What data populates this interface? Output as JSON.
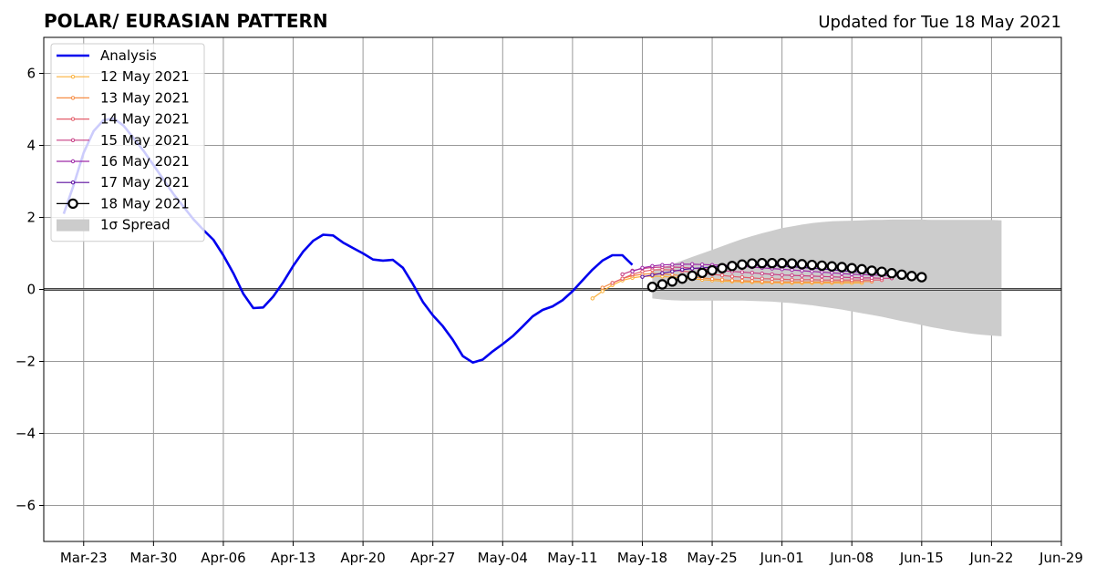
{
  "chart_data": {
    "type": "line",
    "title": "POLAR/ EURASIAN  PATTERN",
    "subtitle": "Updated for Tue 18 May 2021",
    "ylim": [
      -7,
      7
    ],
    "yticks": [
      -6,
      -4,
      -2,
      0,
      2,
      4,
      6
    ],
    "ytick_labels": [
      "−6",
      "−4",
      "−2",
      "0",
      "2",
      "4",
      "6"
    ],
    "xlim": [
      "2021-03-19",
      "2021-06-29"
    ],
    "xticks": [
      "2021-03-23",
      "2021-03-30",
      "2021-04-06",
      "2021-04-13",
      "2021-04-20",
      "2021-04-27",
      "2021-05-04",
      "2021-05-11",
      "2021-05-18",
      "2021-05-25",
      "2021-06-01",
      "2021-06-08",
      "2021-06-15",
      "2021-06-22",
      "2021-06-29"
    ],
    "xtick_labels": [
      "Mar-23",
      "Mar-30",
      "Apr-06",
      "Apr-13",
      "Apr-20",
      "Apr-27",
      "May-04",
      "May-11",
      "May-18",
      "May-25",
      "Jun-01",
      "Jun-08",
      "Jun-15",
      "Jun-22",
      "Jun-29"
    ],
    "grid": true,
    "legend_position": "upper-left",
    "analysis": {
      "name": "Analysis",
      "color": "#0000ee",
      "x": [
        "2021-03-21",
        "2021-03-22",
        "2021-03-23",
        "2021-03-24",
        "2021-03-25",
        "2021-03-26",
        "2021-03-27",
        "2021-03-28",
        "2021-03-29",
        "2021-03-30",
        "2021-03-31",
        "2021-04-01",
        "2021-04-02",
        "2021-04-03",
        "2021-04-04",
        "2021-04-05",
        "2021-04-06",
        "2021-04-07",
        "2021-04-08",
        "2021-04-09",
        "2021-04-10",
        "2021-04-11",
        "2021-04-12",
        "2021-04-13",
        "2021-04-14",
        "2021-04-15",
        "2021-04-16",
        "2021-04-17",
        "2021-04-18",
        "2021-04-19",
        "2021-04-20",
        "2021-04-21",
        "2021-04-22",
        "2021-04-23",
        "2021-04-24",
        "2021-04-25",
        "2021-04-26",
        "2021-04-27",
        "2021-04-28",
        "2021-04-29",
        "2021-04-30",
        "2021-05-01",
        "2021-05-02",
        "2021-05-03",
        "2021-05-04",
        "2021-05-05",
        "2021-05-06",
        "2021-05-07",
        "2021-05-08",
        "2021-05-09",
        "2021-05-10",
        "2021-05-11",
        "2021-05-12",
        "2021-05-13",
        "2021-05-14",
        "2021-05-15",
        "2021-05-16",
        "2021-05-17",
        "2021-05-18"
      ],
      "y": [
        2.1,
        2.9,
        3.8,
        4.4,
        4.7,
        4.75,
        4.55,
        4.2,
        3.85,
        3.45,
        3.05,
        2.65,
        2.3,
        1.95,
        1.65,
        1.38,
        0.95,
        0.45,
        -0.12,
        -0.52,
        -0.5,
        -0.2,
        0.2,
        0.65,
        1.05,
        1.35,
        1.52,
        1.5,
        1.3,
        1.15,
        1.0,
        0.83,
        0.8,
        0.82,
        0.6,
        0.15,
        -0.35,
        -0.72,
        -1.02,
        -1.4,
        -1.85,
        -2.03,
        -1.95,
        -1.72,
        -1.52,
        -1.3,
        -1.03,
        -0.75,
        -0.57,
        -0.47,
        -0.3,
        -0.05,
        0.25,
        0.55,
        0.8,
        0.95,
        0.95,
        0.68,
        null
      ]
    },
    "series": [
      {
        "name": "12 May 2021",
        "color": "#fbb13c",
        "start": "2021-05-13",
        "values": [
          -0.25,
          -0.05,
          0.12,
          0.25,
          0.32,
          0.36,
          0.37,
          0.36,
          0.34,
          0.32,
          0.29,
          0.27,
          0.25,
          0.23,
          0.22,
          0.21,
          0.2,
          0.19,
          0.19,
          0.18,
          0.18,
          0.18,
          0.18,
          0.18,
          0.18,
          0.18,
          0.18,
          0.18
        ]
      },
      {
        "name": "13 May 2021",
        "color": "#f68d45",
        "start": "2021-05-14",
        "values": [
          0.05,
          0.18,
          0.3,
          0.38,
          0.42,
          0.44,
          0.43,
          0.41,
          0.38,
          0.35,
          0.32,
          0.29,
          0.27,
          0.25,
          0.24,
          0.23,
          0.22,
          0.21,
          0.21,
          0.21,
          0.21,
          0.21,
          0.21,
          0.21,
          0.22,
          0.22,
          0.22,
          0.22
        ]
      },
      {
        "name": "14 May 2021",
        "color": "#e35d6a",
        "start": "2021-05-15",
        "values": [
          0.18,
          0.3,
          0.42,
          0.5,
          0.54,
          0.55,
          0.54,
          0.51,
          0.48,
          0.45,
          0.42,
          0.39,
          0.36,
          0.34,
          0.32,
          0.3,
          0.29,
          0.28,
          0.27,
          0.27,
          0.27,
          0.26,
          0.26,
          0.26,
          0.26,
          0.26,
          0.26,
          0.26
        ]
      },
      {
        "name": "15 May 2021",
        "color": "#c83e84",
        "start": "2021-05-16",
        "values": [
          0.42,
          0.52,
          0.58,
          0.61,
          0.62,
          0.62,
          0.61,
          0.59,
          0.57,
          0.55,
          0.52,
          0.5,
          0.48,
          0.46,
          0.44,
          0.42,
          0.4,
          0.39,
          0.38,
          0.37,
          0.36,
          0.35,
          0.34,
          0.33,
          0.32,
          0.32,
          0.31,
          0.31
        ]
      },
      {
        "name": "16 May 2021",
        "color": "#9e2aa8",
        "start": "2021-05-17",
        "values": [
          0.5,
          0.6,
          0.65,
          0.68,
          0.69,
          0.7,
          0.7,
          0.69,
          0.68,
          0.67,
          0.66,
          0.64,
          0.62,
          0.6,
          0.58,
          0.56,
          0.54,
          0.52,
          0.5,
          0.48,
          0.46,
          0.44,
          0.42,
          0.41,
          0.4,
          0.39,
          0.38,
          0.37
        ]
      },
      {
        "name": "17 May 2021",
        "color": "#5c0f9f",
        "start": "2021-05-18",
        "values": [
          0.35,
          0.4,
          0.45,
          0.5,
          0.55,
          0.58,
          0.6,
          0.62,
          0.64,
          0.66,
          0.67,
          0.67,
          0.67,
          0.66,
          0.65,
          0.63,
          0.61,
          0.59,
          0.57,
          0.55,
          0.52,
          0.5,
          0.48,
          0.46,
          0.44,
          0.42,
          0.4,
          0.38
        ]
      },
      {
        "name": "18 May 2021",
        "color": "#000000",
        "start": "2021-05-19",
        "values": [
          0.07,
          0.14,
          0.22,
          0.3,
          0.38,
          0.46,
          0.53,
          0.59,
          0.65,
          0.69,
          0.72,
          0.73,
          0.73,
          0.73,
          0.72,
          0.7,
          0.68,
          0.66,
          0.64,
          0.62,
          0.59,
          0.56,
          0.52,
          0.49,
          0.45,
          0.41,
          0.37,
          0.34
        ]
      }
    ],
    "spread": {
      "name": "1σ Spread",
      "color": "#cccccc",
      "start": "2021-05-19",
      "upper": [
        0.55,
        0.6,
        0.7,
        0.8,
        0.9,
        1.0,
        1.1,
        1.2,
        1.3,
        1.4,
        1.48,
        1.56,
        1.63,
        1.7,
        1.75,
        1.8,
        1.84,
        1.87,
        1.89,
        1.9,
        1.91,
        1.92,
        1.93,
        1.93,
        1.94,
        1.94,
        1.94,
        1.94,
        1.93,
        1.93,
        1.93,
        1.93,
        1.93,
        1.93,
        1.93,
        1.92
      ],
      "lower": [
        -0.25,
        -0.28,
        -0.3,
        -0.31,
        -0.31,
        -0.31,
        -0.31,
        -0.31,
        -0.31,
        -0.31,
        -0.32,
        -0.33,
        -0.34,
        -0.36,
        -0.38,
        -0.41,
        -0.44,
        -0.48,
        -0.52,
        -0.56,
        -0.61,
        -0.66,
        -0.71,
        -0.76,
        -0.82,
        -0.88,
        -0.93,
        -0.99,
        -1.05,
        -1.1,
        -1.15,
        -1.19,
        -1.23,
        -1.26,
        -1.28,
        -1.3
      ]
    }
  }
}
